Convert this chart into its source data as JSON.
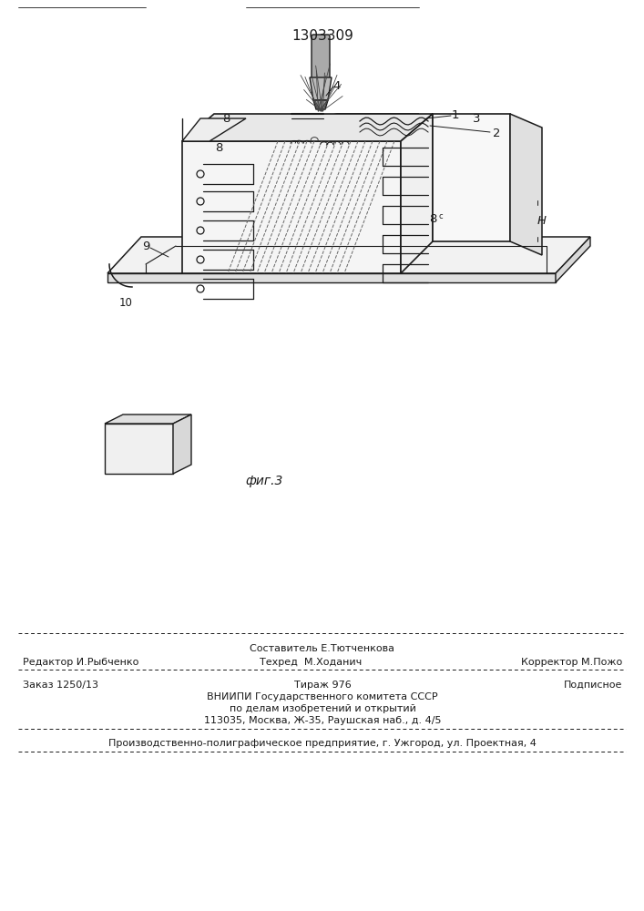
{
  "patent_number": "1303309",
  "fig_label": "фиг.3",
  "bg_color": "#ffffff",
  "line_color": "#1a1a1a",
  "footer": {
    "line1_center_top": "Составитель Е.Тютченкова",
    "line1_left": "Редактор И.Рыбченко",
    "line1_center_bot": "Техред  М.Ходанич",
    "line1_right": "Корректор М.Пожо",
    "line2_left": "Заказ 1250/13",
    "line2_center": "Тираж 976",
    "line2_right": "Подписное",
    "line3": "ВНИИПИ Государственного комитета СССР",
    "line4": "по делам изобретений и открытий",
    "line5": "113035, Москва, Ж-35, Раушская наб., д. 4/5",
    "line6": "Производственно-полиграфическое предприятие, г. Ужгород, ул. Проектная, 4"
  }
}
